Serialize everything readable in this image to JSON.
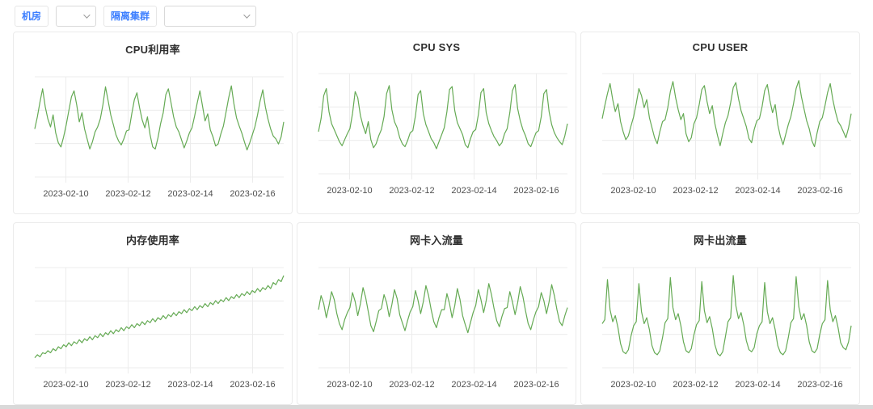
{
  "toolbar": {
    "room_label": "机房",
    "room_select": {
      "value": ""
    },
    "cluster_label": "隔离集群",
    "cluster_select": {
      "value": ""
    },
    "accent_color": "#3d7fff"
  },
  "chart_data": [
    {
      "type": "line",
      "title": "CPU利用率",
      "color": "#65aa54",
      "grid": true,
      "legend": "none",
      "x_range": [
        "2023-02-09",
        "2023-02-17"
      ],
      "x_ticks": [
        "2023-02-10",
        "2023-02-12",
        "2023-02-14",
        "2023-02-16"
      ],
      "ylim": [
        0,
        100
      ],
      "values": [
        48,
        60,
        75,
        88,
        70,
        58,
        50,
        62,
        44,
        34,
        30,
        40,
        52,
        66,
        80,
        86,
        72,
        55,
        64,
        48,
        38,
        28,
        35,
        45,
        50,
        58,
        72,
        90,
        76,
        62,
        52,
        42,
        36,
        32,
        38,
        46,
        47,
        63,
        77,
        84,
        69,
        57,
        49,
        60,
        42,
        30,
        28,
        39,
        53,
        64,
        82,
        88,
        74,
        60,
        50,
        45,
        37,
        29,
        36,
        44,
        49,
        61,
        74,
        86,
        71,
        56,
        63,
        47,
        40,
        31,
        33,
        43,
        51,
        65,
        79,
        91,
        73,
        59,
        51,
        44,
        35,
        27,
        34,
        42,
        50,
        62,
        76,
        87,
        70,
        58,
        48,
        41,
        38,
        33,
        40,
        55
      ]
    },
    {
      "type": "line",
      "title": "CPU SYS",
      "color": "#65aa54",
      "grid": true,
      "legend": "none",
      "x_range": [
        "2023-02-09",
        "2023-02-17"
      ],
      "x_ticks": [
        "2023-02-10",
        "2023-02-12",
        "2023-02-14",
        "2023-02-16"
      ],
      "ylim": [
        0,
        100
      ],
      "values": [
        42,
        55,
        78,
        85,
        62,
        50,
        44,
        38,
        32,
        28,
        34,
        40,
        45,
        60,
        82,
        76,
        58,
        48,
        40,
        52,
        34,
        26,
        30,
        38,
        44,
        57,
        80,
        88,
        64,
        52,
        46,
        36,
        30,
        27,
        33,
        41,
        43,
        58,
        79,
        83,
        60,
        49,
        42,
        35,
        31,
        25,
        32,
        39,
        46,
        62,
        84,
        87,
        63,
        51,
        45,
        39,
        29,
        26,
        35,
        42,
        44,
        59,
        81,
        85,
        61,
        50,
        43,
        37,
        33,
        28,
        31,
        40,
        45,
        61,
        83,
        89,
        65,
        53,
        44,
        38,
        30,
        27,
        34,
        41,
        43,
        57,
        80,
        84,
        62,
        49,
        41,
        36,
        32,
        29,
        38,
        50
      ]
    },
    {
      "type": "line",
      "title": "CPU USER",
      "color": "#65aa54",
      "grid": true,
      "legend": "none",
      "x_range": [
        "2023-02-09",
        "2023-02-17"
      ],
      "x_ticks": [
        "2023-02-10",
        "2023-02-12",
        "2023-02-14",
        "2023-02-16"
      ],
      "ylim": [
        0,
        100
      ],
      "values": [
        55,
        68,
        80,
        90,
        74,
        62,
        70,
        52,
        42,
        34,
        38,
        48,
        57,
        70,
        85,
        78,
        66,
        74,
        56,
        46,
        36,
        30,
        42,
        52,
        54,
        66,
        82,
        92,
        76,
        64,
        54,
        60,
        40,
        32,
        36,
        50,
        56,
        69,
        84,
        88,
        72,
        60,
        68,
        50,
        38,
        28,
        40,
        51,
        58,
        71,
        86,
        91,
        75,
        63,
        55,
        47,
        35,
        31,
        44,
        53,
        55,
        67,
        83,
        89,
        73,
        61,
        69,
        49,
        37,
        29,
        39,
        49,
        57,
        70,
        85,
        93,
        77,
        65,
        53,
        45,
        33,
        27,
        41,
        52,
        56,
        68,
        81,
        90,
        74,
        62,
        52,
        48,
        42,
        36,
        46,
        60
      ]
    },
    {
      "type": "line",
      "title": "内存使用率",
      "color": "#65aa54",
      "grid": true,
      "legend": "none",
      "x_range": [
        "2023-02-09",
        "2023-02-17"
      ],
      "x_ticks": [
        "2023-02-10",
        "2023-02-12",
        "2023-02-14",
        "2023-02-16"
      ],
      "ylim": [
        0,
        100
      ],
      "values": [
        10,
        13,
        11,
        15,
        14,
        17,
        15,
        19,
        17,
        21,
        19,
        23,
        21,
        25,
        22,
        26,
        24,
        28,
        25,
        29,
        27,
        31,
        28,
        32,
        30,
        34,
        31,
        35,
        33,
        37,
        34,
        38,
        36,
        40,
        37,
        41,
        39,
        43,
        40,
        44,
        42,
        46,
        43,
        47,
        45,
        49,
        46,
        50,
        48,
        52,
        49,
        53,
        51,
        55,
        52,
        56,
        54,
        58,
        55,
        59,
        57,
        61,
        58,
        62,
        60,
        64,
        61,
        65,
        63,
        67,
        64,
        68,
        66,
        70,
        67,
        71,
        69,
        73,
        70,
        74,
        72,
        76,
        73,
        77,
        75,
        79,
        76,
        80,
        78,
        82,
        79,
        85,
        83,
        88,
        86,
        92
      ]
    },
    {
      "type": "line",
      "title": "网卡入流量",
      "color": "#65aa54",
      "grid": true,
      "legend": "none",
      "x_range": [
        "2023-02-09",
        "2023-02-17"
      ],
      "x_ticks": [
        "2023-02-10",
        "2023-02-12",
        "2023-02-14",
        "2023-02-16"
      ],
      "ylim": [
        0,
        100
      ],
      "values": [
        58,
        72,
        64,
        50,
        62,
        76,
        68,
        54,
        44,
        38,
        48,
        55,
        60,
        75,
        66,
        52,
        64,
        80,
        70,
        56,
        42,
        36,
        46,
        57,
        59,
        73,
        65,
        51,
        63,
        78,
        69,
        53,
        45,
        37,
        47,
        56,
        61,
        77,
        67,
        54,
        66,
        82,
        72,
        58,
        46,
        40,
        50,
        58,
        58,
        74,
        64,
        50,
        62,
        79,
        68,
        52,
        43,
        35,
        45,
        55,
        62,
        78,
        68,
        55,
        67,
        84,
        73,
        59,
        47,
        41,
        51,
        59,
        60,
        76,
        66,
        53,
        65,
        81,
        71,
        57,
        44,
        38,
        48,
        56,
        61,
        75,
        67,
        54,
        66,
        83,
        72,
        58,
        46,
        42,
        52,
        60
      ]
    },
    {
      "type": "line",
      "title": "网卡出流量",
      "color": "#65aa54",
      "grid": true,
      "legend": "none",
      "x_range": [
        "2023-02-09",
        "2023-02-17"
      ],
      "x_ticks": [
        "2023-02-10",
        "2023-02-12",
        "2023-02-14",
        "2023-02-16"
      ],
      "ylim": [
        0,
        100
      ],
      "values": [
        44,
        48,
        88,
        58,
        46,
        52,
        40,
        24,
        16,
        14,
        18,
        32,
        42,
        46,
        84,
        56,
        44,
        50,
        38,
        22,
        15,
        13,
        17,
        30,
        45,
        49,
        90,
        60,
        48,
        54,
        42,
        26,
        17,
        15,
        19,
        33,
        43,
        47,
        86,
        57,
        45,
        51,
        39,
        23,
        14,
        12,
        16,
        31,
        46,
        50,
        92,
        62,
        49,
        55,
        43,
        27,
        18,
        16,
        20,
        34,
        42,
        46,
        85,
        56,
        44,
        50,
        38,
        22,
        15,
        13,
        17,
        30,
        45,
        49,
        91,
        61,
        48,
        54,
        42,
        26,
        17,
        15,
        19,
        33,
        44,
        48,
        87,
        58,
        46,
        52,
        40,
        25,
        20,
        18,
        26,
        42
      ]
    }
  ]
}
